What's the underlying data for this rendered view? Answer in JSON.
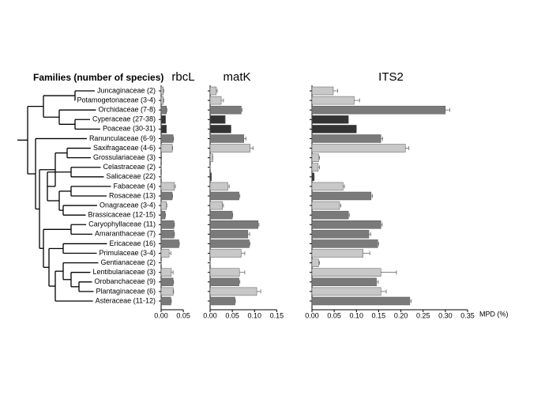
{
  "chart_data": {
    "type": "bar",
    "orientation": "horizontal",
    "title": "Families (number of species)",
    "xlabel": "MPD (%)",
    "categories": [
      "Juncaginaceae (2)",
      "Potamogetonaceae (3-4)",
      "Orchidaceae (7-8)",
      "Cyperaceae (27-38)",
      "Poaceae (30-31)",
      "Ranunculaceae (6-9)",
      "Saxifragaceae (4-6)",
      "Grossulariaceae (3)",
      "Celastraceae (2)",
      "Salicaceae (22)",
      "Fabaceae (4)",
      "Rosaceae (13)",
      "Onagraceae (3-4)",
      "Brassicaceae (12-15)",
      "Caryophyllaceae (11)",
      "Amaranthaceae (7)",
      "Ericaceae (16)",
      "Primulaceae (3-4)",
      "Gentianaceae (2)",
      "Lentibulariaceae (3)",
      "Orobanchaceae (9)",
      "Plantaginaceae (6)",
      "Asteraceae (11-12)"
    ],
    "colors": [
      "#c8c8c8",
      "#c8c8c8",
      "#7a7a7a",
      "#333333",
      "#333333",
      "#7a7a7a",
      "#c8c8c8",
      "#c8c8c8",
      "#c8c8c8",
      "#333333",
      "#c8c8c8",
      "#7a7a7a",
      "#c8c8c8",
      "#7a7a7a",
      "#7a7a7a",
      "#7a7a7a",
      "#7a7a7a",
      "#c8c8c8",
      "#c8c8c8",
      "#c8c8c8",
      "#7a7a7a",
      "#c8c8c8",
      "#7a7a7a"
    ],
    "panels": [
      {
        "title": "rbcL",
        "values": [
          0.005,
          0.005,
          0.012,
          0.01,
          0.012,
          0.027,
          0.025,
          0.001,
          0,
          0,
          0.03,
          0.025,
          0.012,
          0.009,
          0.029,
          0.029,
          0.04,
          0.018,
          0,
          0.023,
          0.027,
          0.027,
          0.022
        ],
        "errors": [
          0.001,
          0.001,
          0.001,
          0,
          0,
          0.001,
          0.001,
          0,
          0,
          0,
          0.002,
          0.001,
          0.001,
          0.001,
          0.001,
          0.001,
          0.001,
          0.004,
          0,
          0.004,
          0.001,
          0.001,
          0.001
        ],
        "xlim": [
          0,
          0.05
        ],
        "xticks": [
          {
            "value": 0,
            "label": "0.00"
          },
          {
            "value": 0.05,
            "label": "0.05"
          }
        ]
      },
      {
        "title": "matK",
        "values": [
          0.014,
          0.025,
          0.07,
          0.034,
          0.047,
          0.076,
          0.09,
          0.006,
          0,
          0.003,
          0.04,
          0.065,
          0.028,
          0.05,
          0.108,
          0.085,
          0.088,
          0.07,
          0,
          0.066,
          0.065,
          0.105,
          0.056
        ],
        "errors": [
          0.002,
          0.005,
          0.002,
          0,
          0,
          0.005,
          0.007,
          0,
          0,
          0,
          0.003,
          0.002,
          0.002,
          0.001,
          0.002,
          0.004,
          0.002,
          0.008,
          0,
          0.012,
          0.002,
          0.009,
          0.001
        ],
        "xlim": [
          0,
          0.15
        ],
        "xticks": [
          {
            "value": 0,
            "label": "0.00"
          },
          {
            "value": 0.05,
            "label": "0.05"
          },
          {
            "value": 0.1,
            "label": "0.10"
          },
          {
            "value": 0.15,
            "label": "0.15"
          }
        ]
      },
      {
        "title": "ITS2",
        "values": [
          0.048,
          0.095,
          0.3,
          0.082,
          0.1,
          0.155,
          0.21,
          0.015,
          0.014,
          0.005,
          0.07,
          0.133,
          0.062,
          0.082,
          0.155,
          0.128,
          0.148,
          0.115,
          0.015,
          0.155,
          0.145,
          0.155,
          0.22
        ],
        "errors": [
          0.01,
          0.012,
          0.01,
          0,
          0,
          0.004,
          0.008,
          0.002,
          0.003,
          0,
          0.003,
          0.003,
          0.003,
          0.002,
          0.003,
          0.004,
          0.002,
          0.015,
          0.002,
          0.035,
          0.004,
          0.012,
          0.003
        ],
        "xlim": [
          0,
          0.35
        ],
        "xticks": [
          {
            "value": 0,
            "label": "0.00"
          },
          {
            "value": 0.05,
            "label": "0.05"
          },
          {
            "value": 0.1,
            "label": "0.10"
          },
          {
            "value": 0.15,
            "label": "0.15"
          },
          {
            "value": 0.2,
            "label": "0.20"
          },
          {
            "value": 0.25,
            "label": "0.25"
          },
          {
            "value": 0.3,
            "label": "0.30"
          },
          {
            "value": 0.35,
            "label": "0.35"
          }
        ]
      }
    ]
  }
}
